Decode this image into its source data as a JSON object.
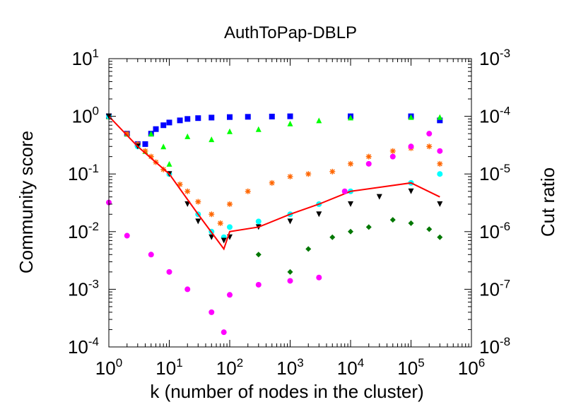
{
  "chart_data": {
    "type": "scatter",
    "title": "AuthToPap-DBLP",
    "xlabel": "k (number of nodes in the cluster)",
    "ylabel": "Community score",
    "y2label": "Cut ratio",
    "xscale": "log",
    "yscale": "log",
    "xlim": [
      1,
      1000000
    ],
    "ylim": [
      0.0001,
      10
    ],
    "y2lim": [
      1e-08,
      0.001
    ],
    "grid": false,
    "legend": "none",
    "x_ticks": [
      {
        "base": "10",
        "exp": "0"
      },
      {
        "base": "10",
        "exp": "1"
      },
      {
        "base": "10",
        "exp": "2"
      },
      {
        "base": "10",
        "exp": "3"
      },
      {
        "base": "10",
        "exp": "4"
      },
      {
        "base": "10",
        "exp": "5"
      },
      {
        "base": "10",
        "exp": "6"
      }
    ],
    "y_ticks": [
      {
        "base": "10",
        "exp": "-4"
      },
      {
        "base": "10",
        "exp": "-3"
      },
      {
        "base": "10",
        "exp": "-2"
      },
      {
        "base": "10",
        "exp": "-1"
      },
      {
        "base": "10",
        "exp": "0"
      },
      {
        "base": "10",
        "exp": "1"
      }
    ],
    "y2_ticks": [
      {
        "base": "10",
        "exp": "-8"
      },
      {
        "base": "10",
        "exp": "-7"
      },
      {
        "base": "10",
        "exp": "-6"
      },
      {
        "base": "10",
        "exp": "-5"
      },
      {
        "base": "10",
        "exp": "-4"
      },
      {
        "base": "10",
        "exp": "-3"
      }
    ],
    "series": [
      {
        "color": "#0000ff",
        "marker": "square",
        "x": [
          1,
          2,
          3,
          4,
          5,
          6,
          8,
          10,
          15,
          20,
          30,
          50,
          100,
          200,
          500,
          1000,
          10000,
          100000,
          300000
        ],
        "y": [
          1.0,
          0.5,
          0.33,
          0.33,
          0.5,
          0.6,
          0.7,
          0.78,
          0.85,
          0.9,
          0.93,
          0.95,
          0.97,
          0.98,
          0.99,
          1.0,
          1.0,
          1.0,
          0.85
        ]
      },
      {
        "color": "#00ff00",
        "marker": "triangle-up",
        "x": [
          1,
          2,
          3,
          4,
          5,
          8,
          10,
          20,
          50,
          100,
          300,
          1000,
          3000,
          10000,
          100000,
          300000
        ],
        "y": [
          1.0,
          0.5,
          0.33,
          0.25,
          0.5,
          0.3,
          0.15,
          0.45,
          0.4,
          0.55,
          0.6,
          0.75,
          0.85,
          0.95,
          0.97,
          0.97
        ]
      },
      {
        "color": "#ff6600",
        "marker": "star",
        "x": [
          1,
          2,
          3,
          4,
          5,
          6,
          8,
          10,
          15,
          20,
          30,
          50,
          70,
          100,
          200,
          500,
          1000,
          2000,
          5000,
          10000,
          20000,
          50000,
          100000,
          200000,
          300000
        ],
        "y": [
          1.0,
          0.5,
          0.33,
          0.25,
          0.2,
          0.16,
          0.12,
          0.1,
          0.066,
          0.05,
          0.033,
          0.02,
          0.014,
          0.03,
          0.05,
          0.07,
          0.09,
          0.1,
          0.11,
          0.15,
          0.2,
          0.25,
          0.28,
          0.3,
          0.15
        ]
      },
      {
        "color": "#00ffff",
        "marker": "circle",
        "x": [
          1,
          3,
          10,
          30,
          50,
          80,
          100,
          300,
          1000,
          3000,
          10000,
          100000,
          300000
        ],
        "y": [
          1.0,
          0.3,
          0.1,
          0.02,
          0.01,
          0.008,
          0.012,
          0.015,
          0.02,
          0.03,
          0.05,
          0.07,
          0.1
        ]
      },
      {
        "color": "#000000",
        "marker": "triangle-down",
        "x": [
          1,
          3,
          10,
          20,
          30,
          50,
          80,
          100,
          300,
          1000,
          3000,
          10000,
          30000,
          100000,
          300000
        ],
        "y": [
          1.0,
          0.3,
          0.1,
          0.03,
          0.015,
          0.008,
          0.007,
          0.008,
          0.012,
          0.015,
          0.02,
          0.03,
          0.04,
          0.05,
          0.03
        ]
      },
      {
        "color": "#ff0000",
        "marker": "line",
        "x": [
          1,
          3,
          10,
          30,
          80,
          100,
          300,
          1000,
          3000,
          10000,
          100000,
          300000
        ],
        "y": [
          1.0,
          0.3,
          0.1,
          0.02,
          0.005,
          0.01,
          0.012,
          0.02,
          0.03,
          0.05,
          0.07,
          0.04
        ]
      },
      {
        "color": "#007700",
        "marker": "diamond",
        "x": [
          300,
          1000,
          2000,
          5000,
          10000,
          20000,
          50000,
          100000,
          200000,
          300000
        ],
        "y": [
          0.004,
          0.002,
          0.005,
          0.008,
          0.01,
          0.012,
          0.016,
          0.014,
          0.011,
          0.008
        ]
      },
      {
        "color": "#ff00ff",
        "marker": "circle",
        "x": [
          1,
          2,
          5,
          10,
          20,
          50,
          80,
          100,
          300,
          1000,
          3000,
          8000,
          20000,
          50000,
          100000,
          200000,
          300000
        ],
        "y": [
          0.032,
          0.0085,
          0.004,
          0.002,
          0.001,
          0.0004,
          0.00018,
          0.0008,
          0.0012,
          0.0014,
          0.0016,
          0.05,
          0.15,
          0.2,
          0.3,
          0.5,
          0.25
        ]
      }
    ]
  }
}
